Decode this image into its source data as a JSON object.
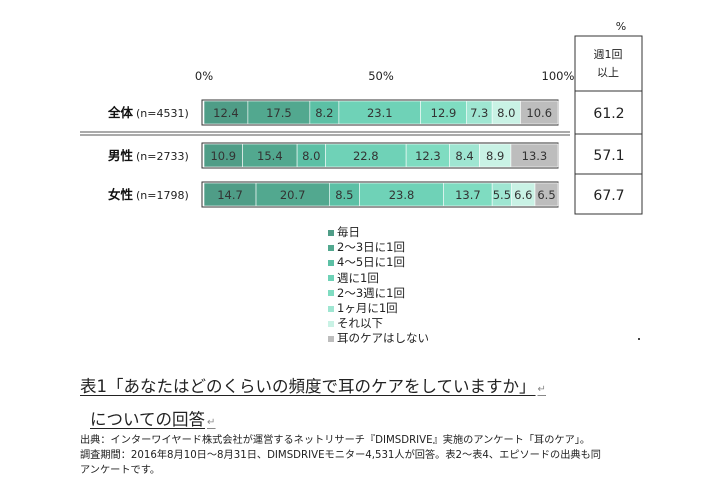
{
  "chart_data": {
    "type": "bar",
    "orientation": "horizontal",
    "stacked": true,
    "categories": [
      "全体",
      "男性",
      "女性"
    ],
    "sample_sizes": [
      "(n=4531)",
      "(n=2733)",
      "(n=1798)"
    ],
    "series": [
      {
        "name": "毎日",
        "color": "#4f9d87",
        "values": [
          12.4,
          10.9,
          14.7
        ]
      },
      {
        "name": "2〜3日に1回",
        "color": "#52a88f",
        "values": [
          17.5,
          15.4,
          20.7
        ]
      },
      {
        "name": "4〜5日に1回",
        "color": "#5cc0a5",
        "values": [
          8.2,
          8.0,
          8.5
        ]
      },
      {
        "name": "週に1回",
        "color": "#6fd2b7",
        "values": [
          23.1,
          22.8,
          23.8
        ]
      },
      {
        "name": "2〜3週に1回",
        "color": "#7fdcc1",
        "values": [
          12.9,
          12.3,
          13.7
        ]
      },
      {
        "name": "1ヶ月に1回",
        "color": "#9fe6d2",
        "values": [
          7.3,
          8.4,
          5.5
        ]
      },
      {
        "name": "それ以下",
        "color": "#c9f2e5",
        "values": [
          8.0,
          8.9,
          6.6
        ]
      },
      {
        "name": "耳のケアはしない",
        "color": "#bdbdbd",
        "values": [
          10.6,
          13.3,
          6.5
        ]
      }
    ],
    "xlim": [
      0,
      100
    ],
    "x_ticks": [
      "0%",
      "50%",
      "100%"
    ],
    "side_table": {
      "unit": "%",
      "header": [
        "週1回",
        "以上"
      ],
      "values": [
        "61.2",
        "57.1",
        "67.7"
      ]
    }
  },
  "caption": {
    "line1": "表1「あなたはどのくらいの頻度で耳のケアをしていますか」",
    "line2": "についての回答"
  },
  "source": {
    "line1": "出典：インターワイヤード株式会社が運営するネットリサーチ『DIMSDRIVE』実施のアンケート「耳のケア」。",
    "line2": "調査期間：2016年8月10日〜8月31日、DIMSDRIVEモニター4,531人が回答。表2〜表4、エピソードの出典も同",
    "line3": "アンケートです。"
  }
}
